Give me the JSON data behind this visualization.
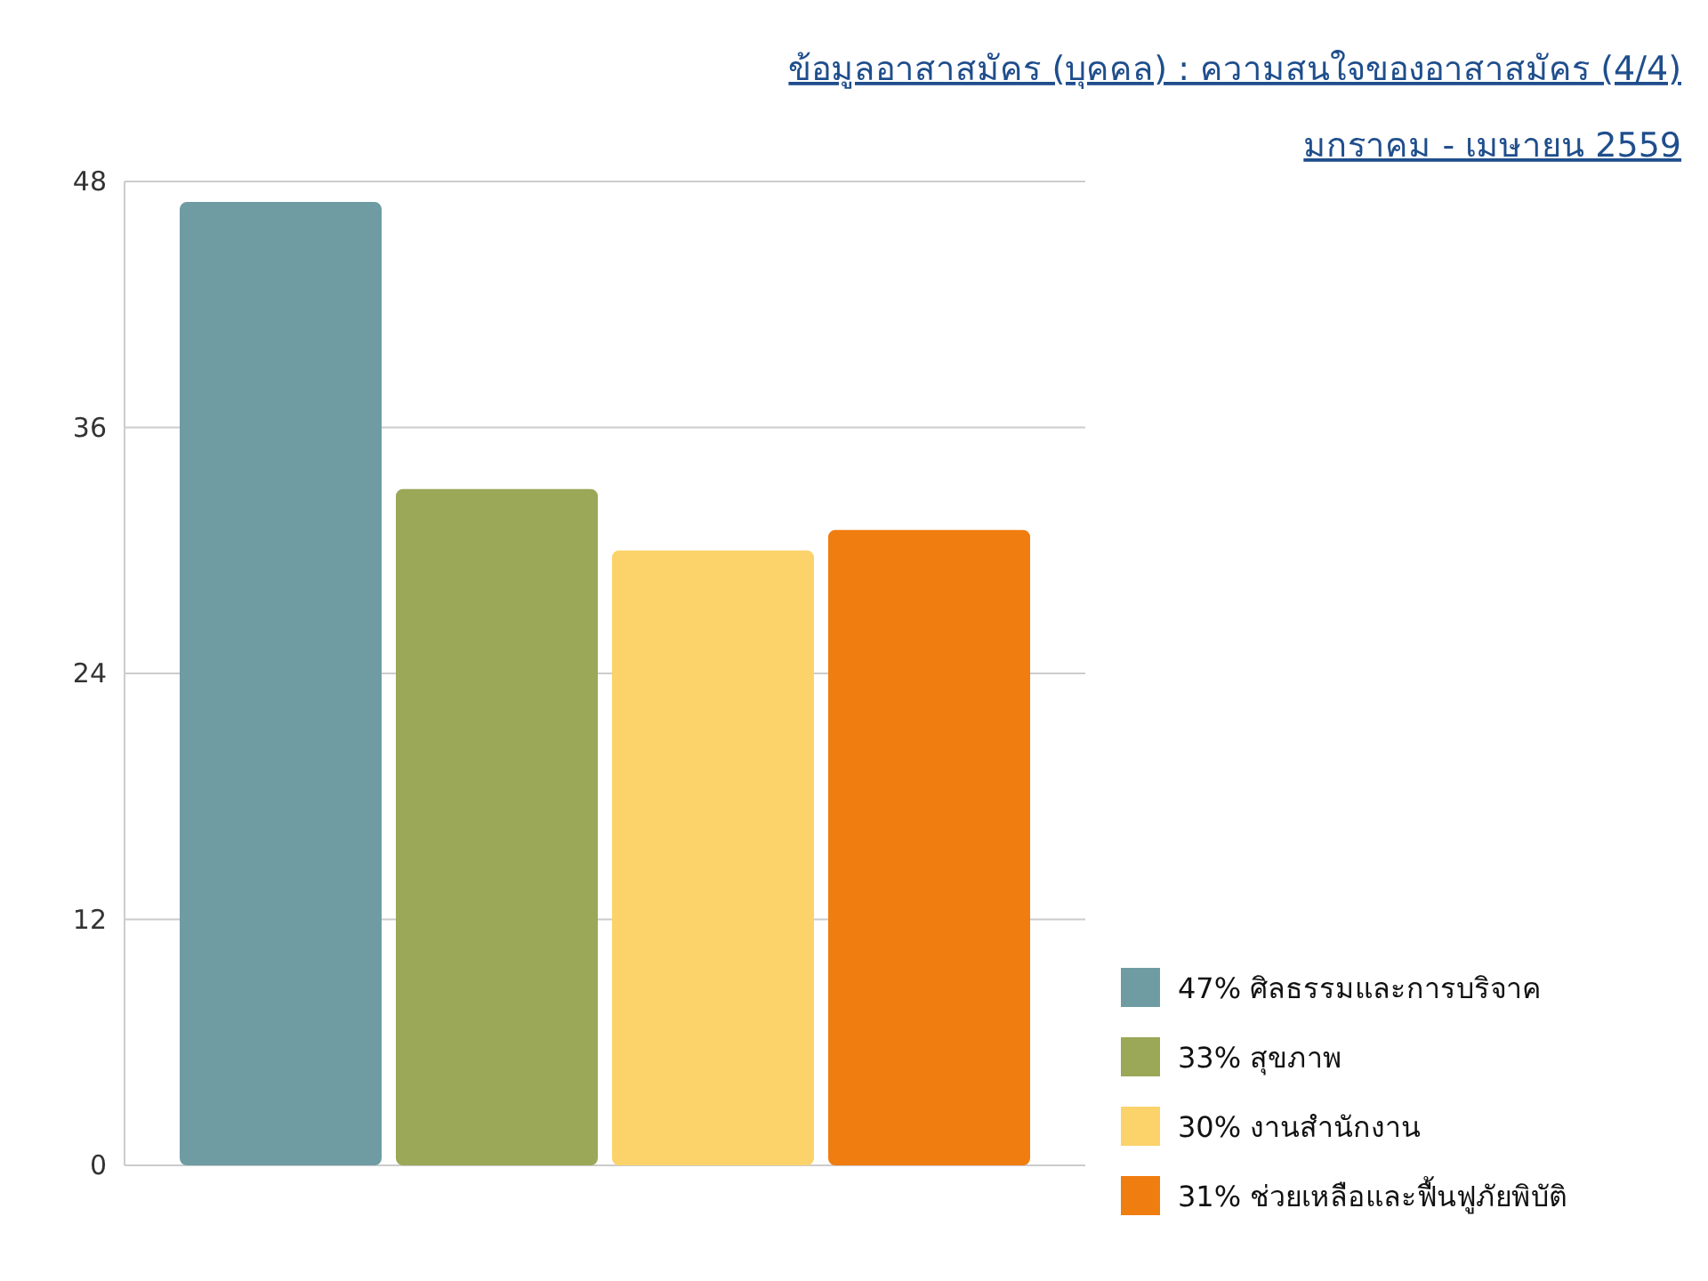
{
  "chart_data": {
    "type": "bar",
    "title": "ข้อมูลอาสาสมัคร (บุคคล) : ความสนใจของอาสาสมัคร (4/4)",
    "subtitle": "มกราคม - เมษายน 2559",
    "categories": [
      null
    ],
    "series": [
      {
        "name": "47% ศิลธรรมและการบริจาค",
        "color": "#6f9ca3",
        "values": [
          47
        ]
      },
      {
        "name": "33% สุขภาพ",
        "color": "#9aa857",
        "values": [
          33
        ]
      },
      {
        "name": "30% งานสำนักงาน",
        "color": "#fcd36a",
        "values": [
          30
        ]
      },
      {
        "name": "31% ช่วยเหลือและฟื้นฟูภัยพิบัติ",
        "color": "#f07d10",
        "values": [
          31
        ]
      }
    ],
    "ylim": [
      0,
      48
    ],
    "yticks": [
      0,
      12,
      24,
      36,
      48
    ],
    "grid": "y",
    "legend": "bottom right"
  }
}
